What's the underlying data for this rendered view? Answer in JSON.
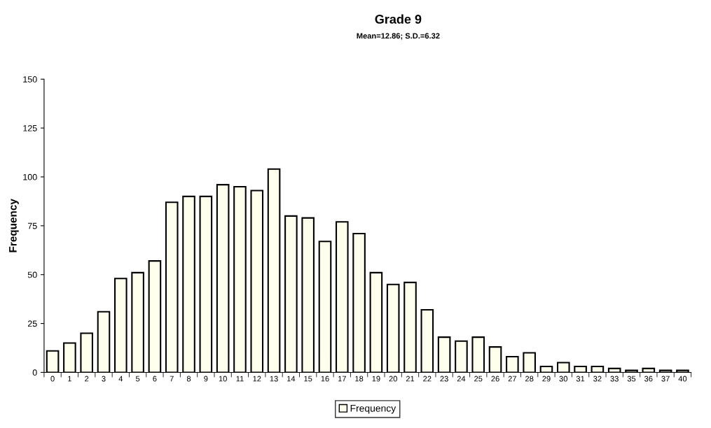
{
  "chart_data": {
    "type": "bar",
    "title": "Grade 9",
    "subtitle": "Mean=12.86; S.D.=6.32",
    "ylabel": "Frequency",
    "categories": [
      "0",
      "1",
      "2",
      "3",
      "4",
      "5",
      "6",
      "7",
      "8",
      "9",
      "10",
      "11",
      "12",
      "13",
      "14",
      "15",
      "16",
      "17",
      "18",
      "19",
      "20",
      "21",
      "22",
      "23",
      "24",
      "25",
      "26",
      "27",
      "28",
      "29",
      "30",
      "31",
      "32",
      "33",
      "35",
      "36",
      "37",
      "40"
    ],
    "series": [
      {
        "name": "Frequency",
        "color": "#ffffee",
        "values": [
          11,
          15,
          20,
          31,
          48,
          51,
          57,
          87,
          90,
          90,
          96,
          95,
          93,
          104,
          80,
          79,
          67,
          77,
          71,
          51,
          45,
          46,
          32,
          18,
          16,
          18,
          13,
          8,
          10,
          3,
          5,
          3,
          3,
          2,
          1,
          2,
          1,
          1
        ]
      }
    ],
    "ylim": [
      0,
      150
    ],
    "yticks": [
      0,
      25,
      50,
      75,
      100,
      125,
      150
    ],
    "grid": false,
    "legend": "bottom"
  }
}
